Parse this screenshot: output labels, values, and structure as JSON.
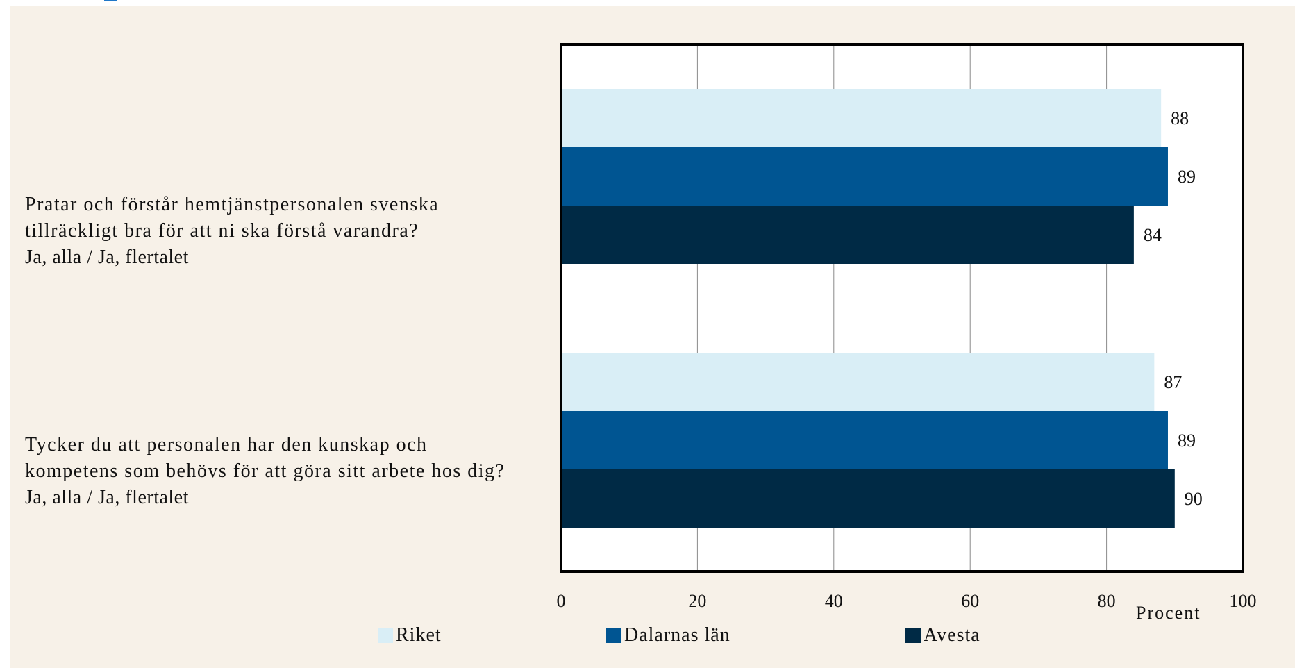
{
  "chart_data": {
    "type": "bar",
    "orientation": "horizontal",
    "categories": [
      {
        "question": "Pratar och förstår hemtjänstpersonalen svenska tillräckligt bra för att ni ska förstå varandra?",
        "answer": "Ja, alla / Ja, flertalet"
      },
      {
        "question": "Tycker du att personalen har den kunskap och kompetens som behövs för att göra sitt arbete hos dig?",
        "answer": "Ja, alla / Ja, flertalet"
      }
    ],
    "series": [
      {
        "name": "Riket",
        "color": "#d9eef6",
        "values": [
          88,
          87
        ]
      },
      {
        "name": "Dalarnas län",
        "color": "#005592",
        "values": [
          89,
          89
        ]
      },
      {
        "name": "Avesta",
        "color": "#002a45",
        "values": [
          84,
          90
        ]
      }
    ],
    "xlabel": "Procent",
    "xlim": [
      0,
      100
    ],
    "xticks": [
      0,
      20,
      40,
      60,
      80,
      100
    ],
    "grid": true,
    "legend_position": "bottom",
    "plot_background": "#ffffff",
    "page_background": "#f7f1e8"
  }
}
